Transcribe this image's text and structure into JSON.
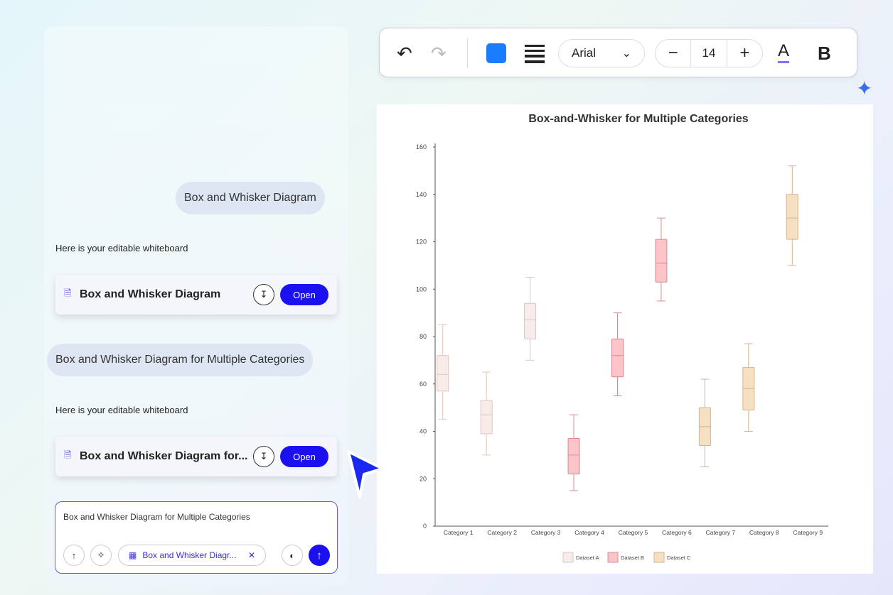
{
  "chat": {
    "messages": [
      {
        "role": "user",
        "text": "Box and Whisker Diagram"
      },
      {
        "role": "assistant",
        "text": "Here is your editable whiteboard",
        "card_title": "Box and Whisker Diagram",
        "open_label": "Open"
      },
      {
        "role": "user",
        "text": "Box and Whisker Diagram for Multiple Categories"
      },
      {
        "role": "assistant",
        "text": "Here is your editable whiteboard",
        "card_title": "Box and Whisker Diagram for...",
        "open_label": "Open"
      }
    ],
    "input": {
      "value": "Box and Whisker Diagram for Multiple Categories",
      "chip_label": "Box and Whisker Diagr..."
    }
  },
  "toolbar": {
    "font": "Arial",
    "font_size": "14",
    "fill_color": "#1a7cff"
  },
  "chart_data": {
    "type": "box",
    "title": "Box-and-Whisker for Multiple Categories",
    "categories": [
      "Category 1",
      "Category 2",
      "Category 3",
      "Category 4",
      "Category 5",
      "Category 6",
      "Category 7",
      "Category 8",
      "Category 9"
    ],
    "ylim": [
      0,
      160
    ],
    "yticks": [
      "0",
      "20",
      "40",
      "60",
      "80",
      "100",
      "120",
      "140",
      "160"
    ],
    "legend_position": "bottom",
    "series": [
      {
        "name": "Dataset A",
        "color": "#f8ecea",
        "stroke": "#e0c4c0",
        "boxes": [
          [
            45,
            57,
            64,
            72,
            85
          ],
          [
            30,
            39,
            47,
            53,
            65
          ],
          [
            70,
            79,
            87,
            94,
            105
          ]
        ]
      },
      {
        "name": "Dataset B",
        "color": "#fbc4c8",
        "stroke": "#e08890",
        "boxes": [
          [
            15,
            22,
            30,
            37,
            47
          ],
          [
            55,
            63,
            72,
            79,
            90
          ],
          [
            95,
            103,
            111,
            121,
            130
          ]
        ]
      },
      {
        "name": "Dataset C",
        "color": "#f6e0c4",
        "stroke": "#d4b48c",
        "boxes": [
          [
            25,
            34,
            42,
            50,
            62
          ],
          [
            40,
            49,
            58,
            67,
            77
          ],
          [
            110,
            121,
            130,
            140,
            152
          ]
        ]
      }
    ]
  }
}
